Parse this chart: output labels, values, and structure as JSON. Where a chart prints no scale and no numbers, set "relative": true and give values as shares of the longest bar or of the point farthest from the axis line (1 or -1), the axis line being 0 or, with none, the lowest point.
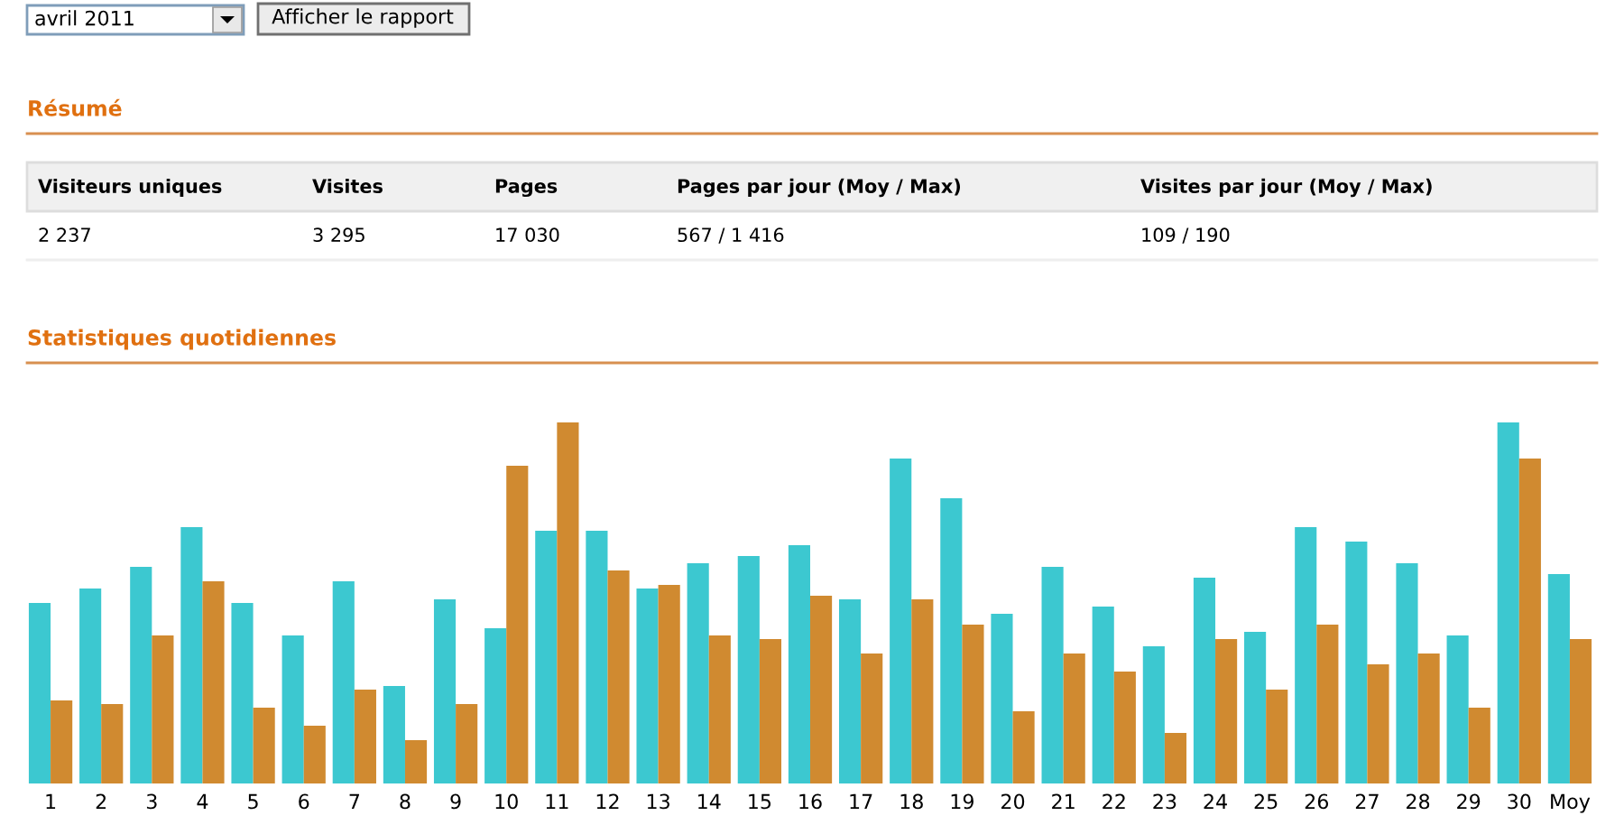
{
  "chart_data": [
    {
      "type": "other",
      "title": "Résumé",
      "annotations": [
        "avril 2011",
        "Afficher le rapport",
        "Visiteurs uniques",
        "Visites",
        "Pages",
        "Pages par jour (Moy / Max)",
        "Visites par jour (Moy / Max)",
        "2 237",
        "3 295",
        "17 030",
        "567 / 1 416",
        "109 / 190"
      ]
    },
    {
      "type": "bar",
      "title": "Statistiques quotidiennes",
      "relative": true,
      "categories": [
        "1",
        "2",
        "3",
        "4",
        "5",
        "6",
        "7",
        "8",
        "9",
        "10",
        "11",
        "12",
        "13",
        "14",
        "15",
        "16",
        "17",
        "18",
        "19",
        "20",
        "21",
        "22",
        "23",
        "24",
        "25",
        "26",
        "27",
        "28",
        "29",
        "30",
        "Moy"
      ],
      "series": [
        {
          "color": "#3cc8d0",
          "values": [
            0.5,
            0.54,
            0.6,
            0.71,
            0.5,
            0.41,
            0.56,
            0.27,
            0.51,
            0.43,
            0.7,
            0.7,
            0.54,
            0.61,
            0.63,
            0.66,
            0.51,
            0.9,
            0.79,
            0.47,
            0.6,
            0.49,
            0.38,
            0.57,
            0.42,
            0.71,
            0.67,
            0.61,
            0.41,
            1.0,
            0.58
          ]
        },
        {
          "color": "#d08a30",
          "values": [
            0.23,
            0.22,
            0.41,
            0.56,
            0.21,
            0.16,
            0.26,
            0.12,
            0.22,
            0.88,
            1.0,
            0.59,
            0.55,
            0.41,
            0.4,
            0.52,
            0.36,
            0.51,
            0.44,
            0.2,
            0.36,
            0.31,
            0.14,
            0.4,
            0.26,
            0.44,
            0.33,
            0.36,
            0.21,
            0.9,
            0.4
          ]
        }
      ]
    }
  ]
}
